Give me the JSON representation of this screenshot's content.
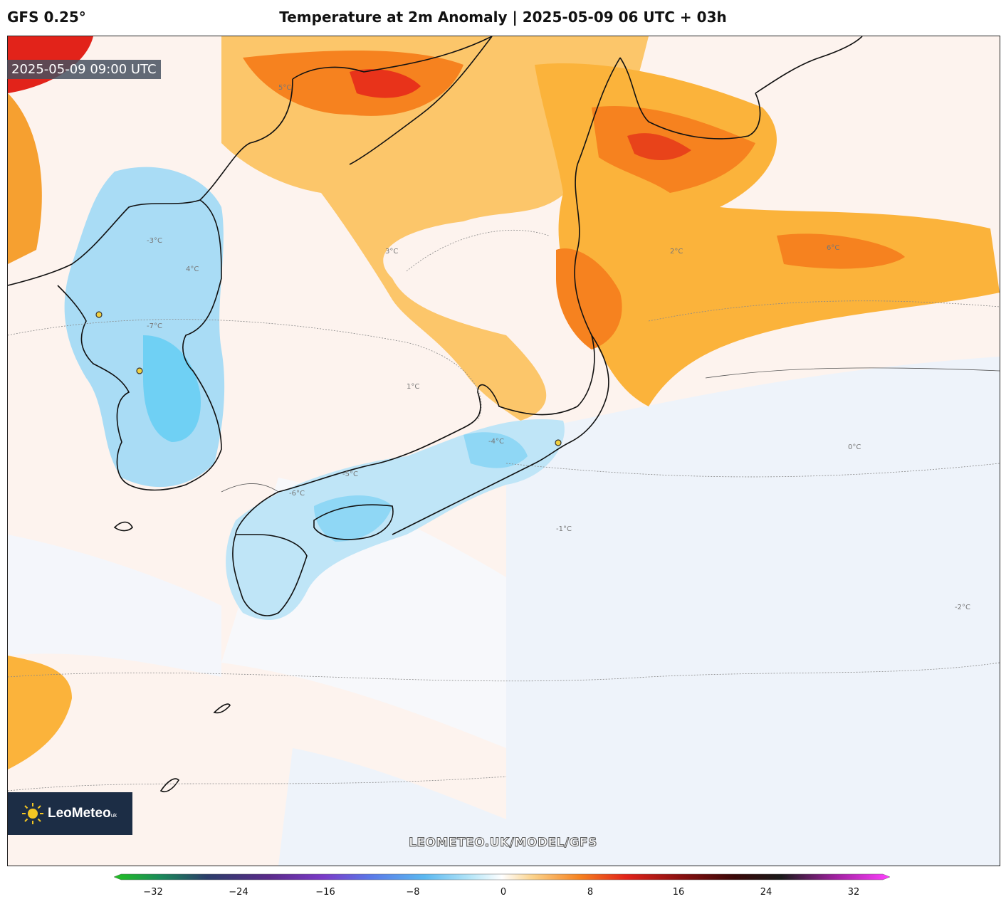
{
  "header": {
    "model": "GFS 0.25°",
    "title": "Temperature at 2m Anomaly | 2025-05-09 06 UTC + 03h"
  },
  "map": {
    "valid_time": "2025-05-09 09:00 UTC",
    "watermark": "LEOMETEO.UK/MODEL/GFS",
    "region": "Japan, Korea and surrounding seas",
    "contour_labels": [
      "5°C",
      "4°C",
      "3°C",
      "2°C",
      "1°C",
      "0°C",
      "-1°C",
      "-2°C",
      "6°C",
      "-6°C",
      "-5°C",
      "-4°C",
      "-3°C",
      "-7°C"
    ],
    "colors": {
      "warm_strong": "#e2231a",
      "warm_mid": "#f6821f",
      "warm_light": "#fbb33b",
      "warm_pale": "#fde3d7",
      "neutral": "#fdfbfa",
      "cool_pale": "#e8f0fa",
      "cool_mid": "#a9dcf5",
      "cool_strong": "#6fd0f4"
    }
  },
  "logo": {
    "brand": "LeoMeteo",
    "suffix": "uk"
  },
  "colorbar": {
    "ticks": [
      "−32",
      "−24",
      "−16",
      "−8",
      "0",
      "8",
      "16",
      "24",
      "32"
    ]
  }
}
